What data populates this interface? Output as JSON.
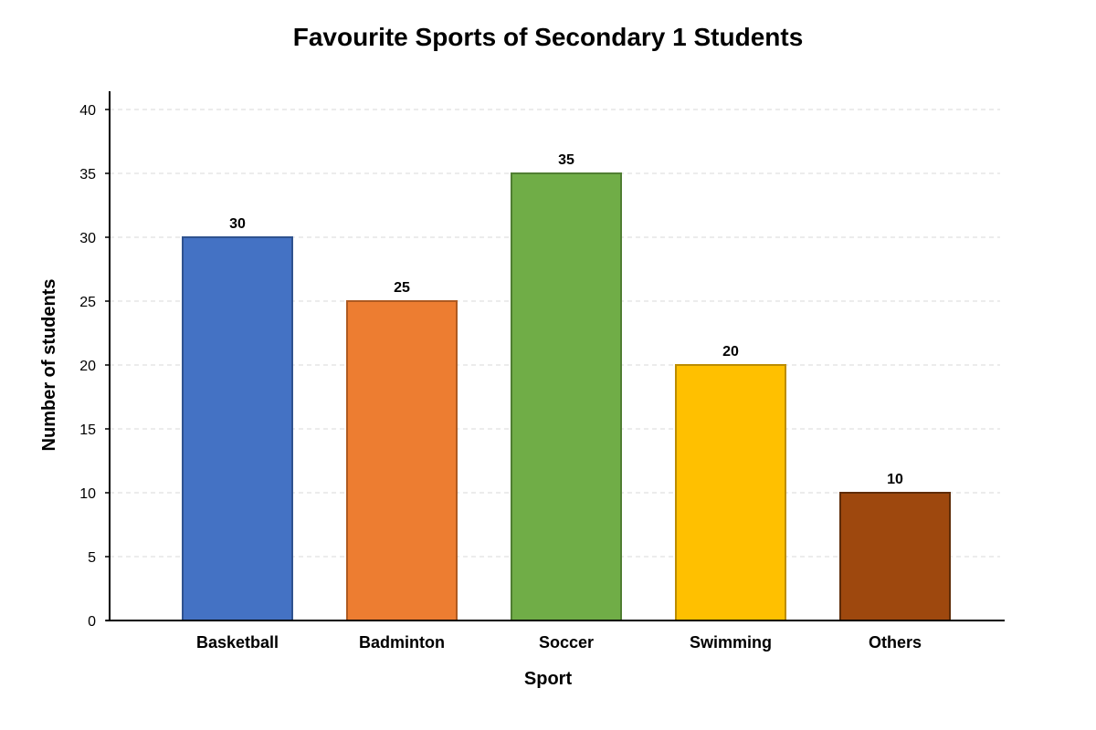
{
  "chart_data": {
    "type": "bar",
    "title": "Favourite Sports of Secondary 1 Students",
    "xlabel": "Sport",
    "ylabel": "Number of students",
    "categories": [
      "Basketball",
      "Badminton",
      "Soccer",
      "Swimming",
      "Others"
    ],
    "values": [
      30,
      25,
      35,
      20,
      10
    ],
    "colors": [
      "#4472c4",
      "#ed7d31",
      "#70ad47",
      "#ffc000",
      "#9e480e"
    ],
    "border_colors": [
      "#2f528f",
      "#ae5a21",
      "#507e32",
      "#bc8c00",
      "#5e2c08"
    ],
    "ylim": [
      0,
      40
    ],
    "yticks": [
      0,
      5,
      10,
      15,
      20,
      25,
      30,
      35,
      40
    ],
    "grid": true,
    "legend": "none"
  }
}
